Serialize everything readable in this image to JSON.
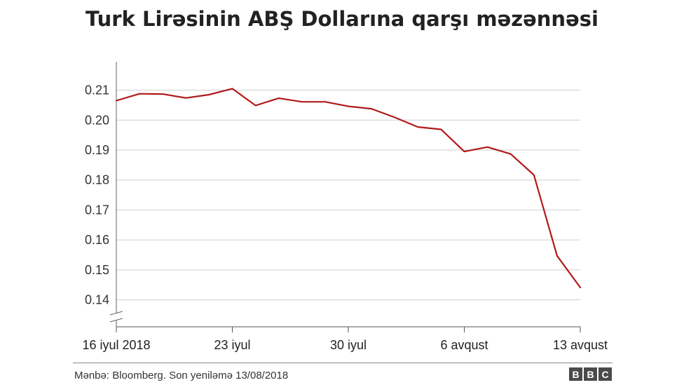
{
  "chart_data": {
    "type": "line",
    "title": "Turk Lirəsinin ABŞ Dollarına qarşı məzənnəsi",
    "xlabel": "",
    "ylabel": "",
    "ylim": [
      0.131,
      0.2195
    ],
    "yticks": [
      0.14,
      0.15,
      0.16,
      0.17,
      0.18,
      0.19,
      0.2,
      0.21
    ],
    "ytick_labels": [
      "0.14",
      "0.15",
      "0.16",
      "0.17",
      "0.18",
      "0.19",
      "0.20",
      "0.21"
    ],
    "xtick_labels": [
      "16 iyul 2018",
      "23 iyul",
      "30 iyul",
      "6 avqust",
      "13 avqust"
    ],
    "grid": true,
    "series": [
      {
        "color": "#b01a1a",
        "values": [
          0.2065,
          0.2088,
          0.2087,
          0.2074,
          0.2085,
          0.2105,
          0.2049,
          0.2073,
          0.2061,
          0.2061,
          0.2046,
          0.2038,
          0.2009,
          0.1977,
          0.1969,
          0.1895,
          0.191,
          0.1887,
          0.1817,
          0.1547,
          0.1441
        ]
      }
    ]
  },
  "footer": {
    "source": "Mənbə: Bloomberg. Son yeniləmə 13/08/2018",
    "logo": [
      "B",
      "B",
      "C"
    ]
  }
}
